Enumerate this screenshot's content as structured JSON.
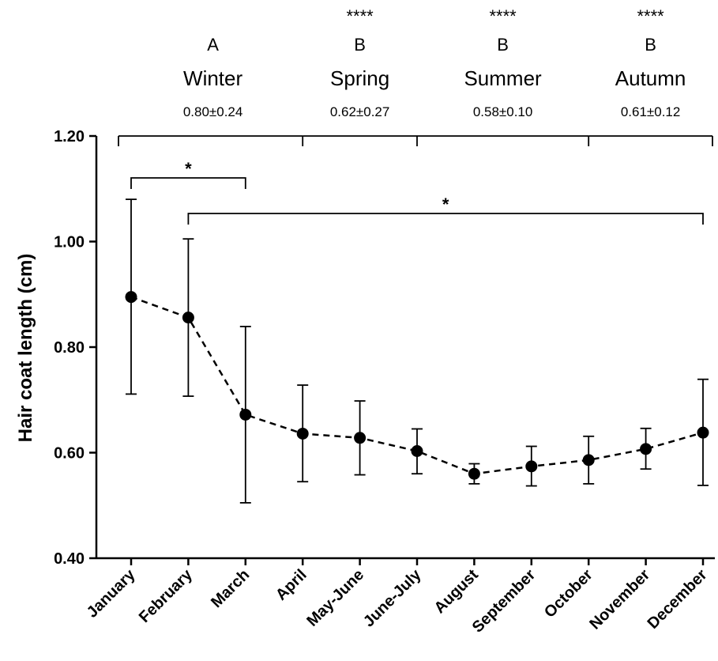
{
  "chart_data": {
    "type": "line",
    "title": "",
    "xlabel": "",
    "ylabel": "Hair coat length (cm)",
    "ylim": [
      0.4,
      1.2
    ],
    "yticks": [
      "0.40",
      "0.60",
      "0.80",
      "1.00",
      "1.20"
    ],
    "line_style": "dashed",
    "error_bars": true,
    "categories": [
      "January",
      "February",
      "March",
      "April",
      "May-June",
      "June-July",
      "August",
      "September",
      "October",
      "November",
      "December"
    ],
    "series": [
      {
        "values": [
          0.895,
          0.856,
          0.672,
          0.636,
          0.628,
          0.603,
          0.56,
          0.574,
          0.586,
          0.607,
          0.638
        ],
        "err_upper": [
          1.08,
          1.005,
          0.839,
          0.728,
          0.698,
          0.645,
          0.579,
          0.612,
          0.631,
          0.646,
          0.739
        ],
        "err_lower": [
          0.711,
          0.707,
          0.505,
          0.545,
          0.558,
          0.56,
          0.541,
          0.537,
          0.541,
          0.569,
          0.538
        ]
      }
    ],
    "seasons": [
      {
        "stars": "",
        "letter": "A",
        "name": "Winter",
        "stat": "0.80±0.24",
        "from": "January",
        "to": "April"
      },
      {
        "stars": "****",
        "letter": "B",
        "name": "Spring",
        "stat": "0.62±0.27",
        "from": "April",
        "to": "June-July"
      },
      {
        "stars": "****",
        "letter": "B",
        "name": "Summer",
        "stat": "0.58±0.10",
        "from": "June-July",
        "to": "October"
      },
      {
        "stars": "****",
        "letter": "B",
        "name": "Autumn",
        "stat": "0.61±0.12",
        "from": "October",
        "to": "December"
      }
    ],
    "brackets": [
      {
        "from": "January",
        "to": "March",
        "label": "*"
      },
      {
        "from": "February",
        "to": "December",
        "label": "*"
      }
    ]
  }
}
